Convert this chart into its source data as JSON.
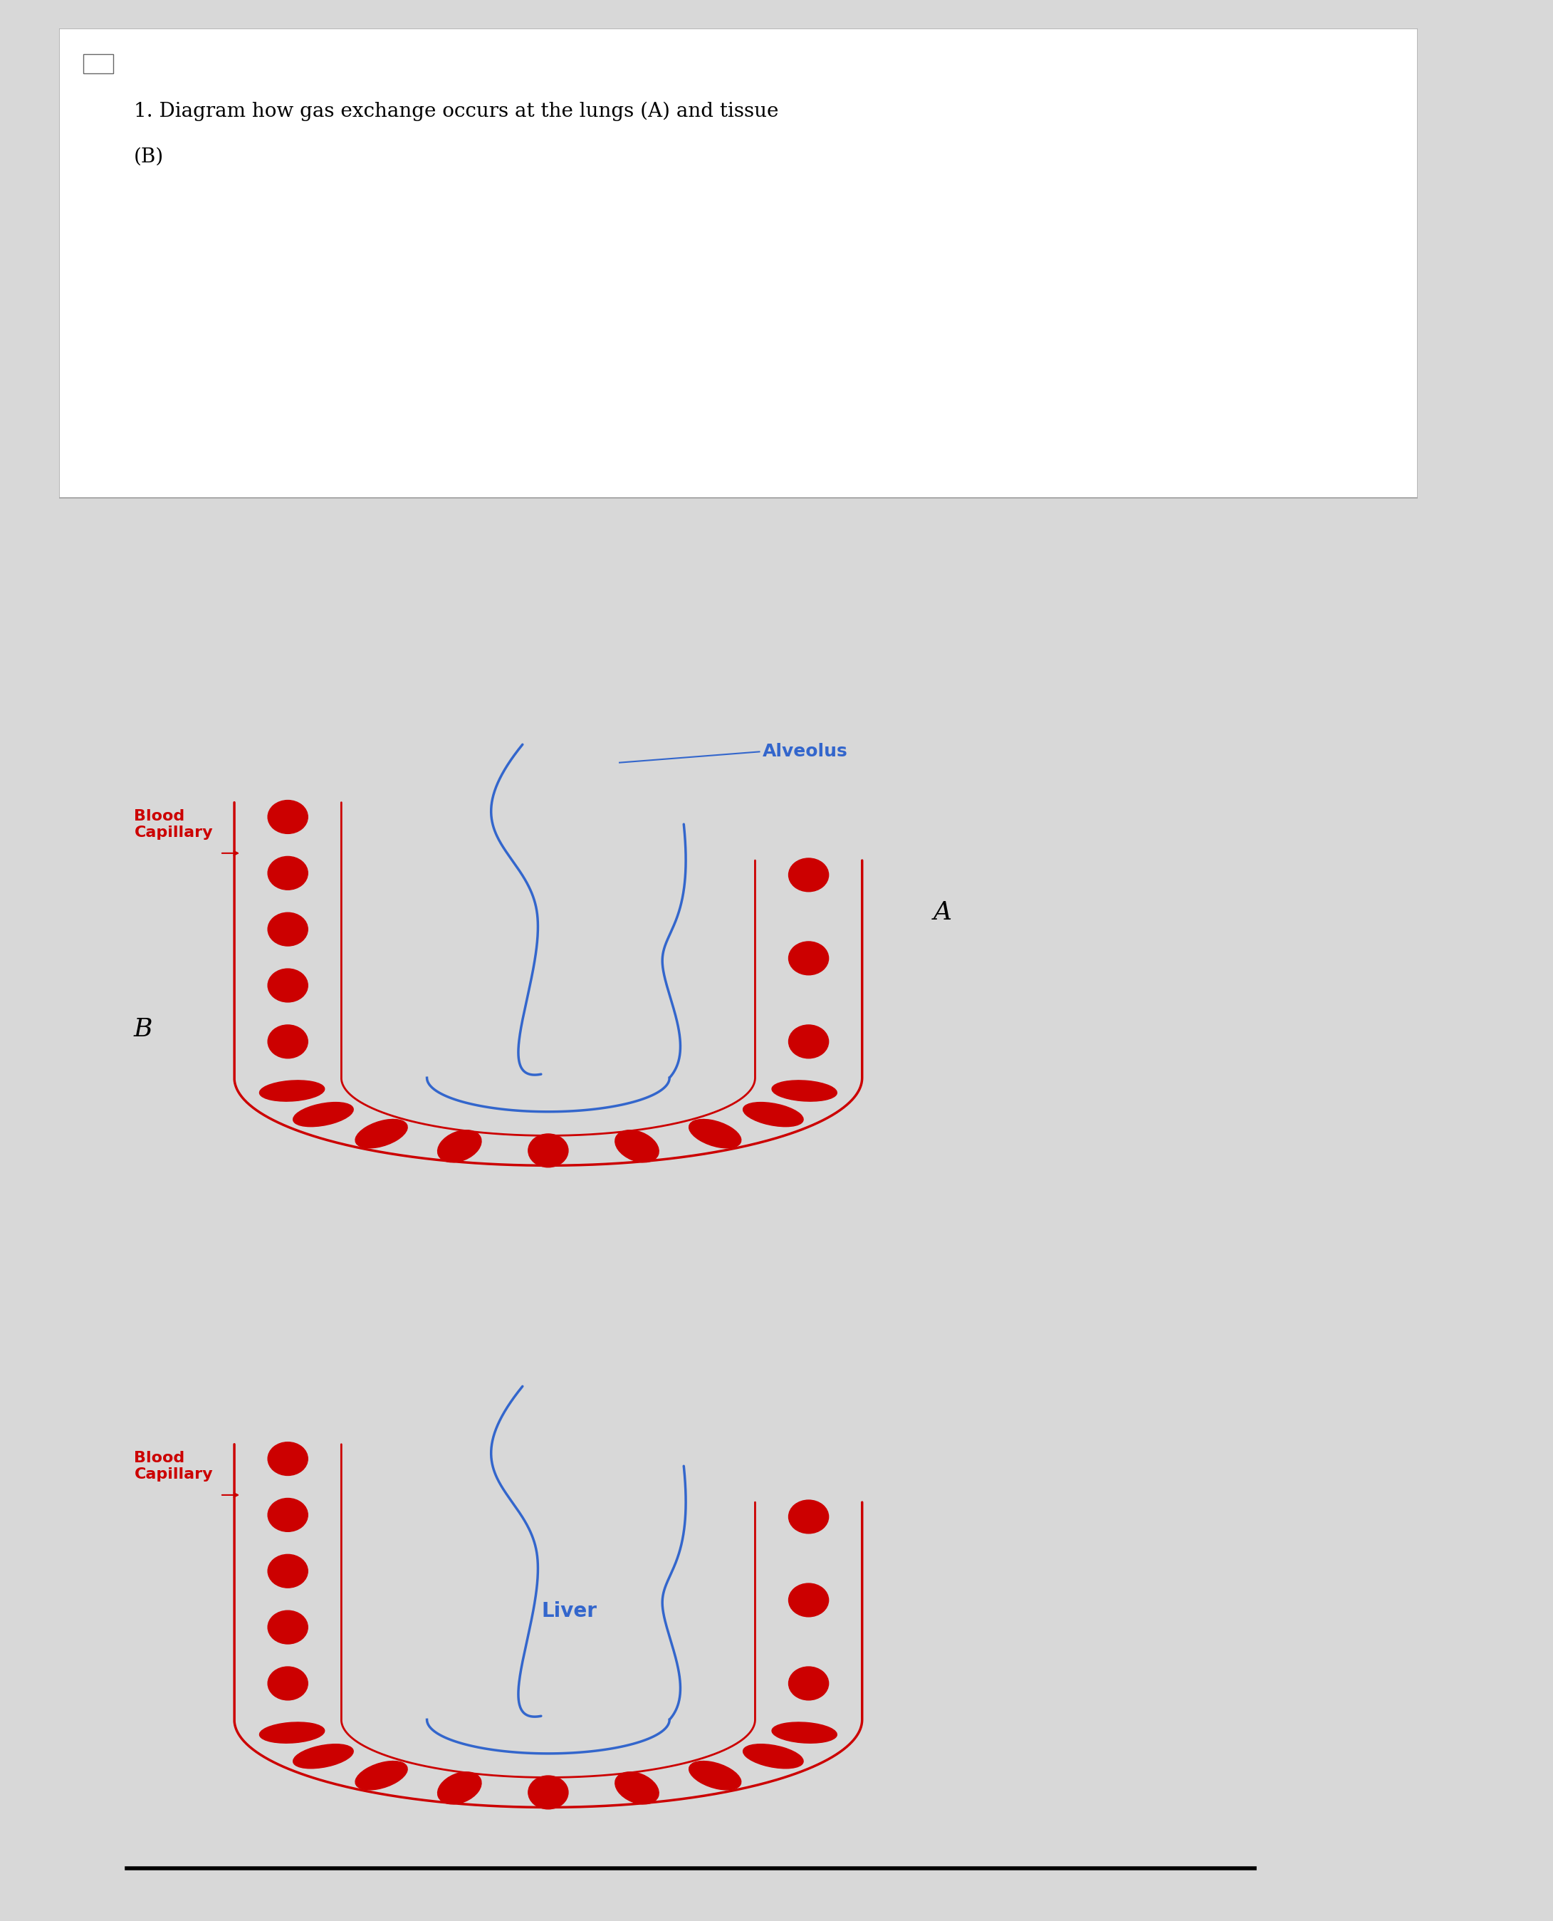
{
  "title_line1": "1. Diagram how gas exchange occurs at the lungs (A) and tissue",
  "title_line2": "(B)",
  "title_color": "#000000",
  "title_fontsize": 20,
  "bg_color": "#ffffff",
  "outer_bg": "#d8d8d8",
  "capillary_color": "#cc0000",
  "alveolus_color": "#3366cc",
  "rbc_color": "#cc0000",
  "label_A": "A",
  "label_B": "B",
  "label_alveolus": "Alveolus",
  "label_blood_cap": "Blood\nCapillary",
  "label_liver": "Liver",
  "label_color_red": "#cc0000",
  "label_color_blue": "#3366cc",
  "label_color_black": "#000000",
  "cap_lw_outer": 2.5,
  "cap_lw_inner": 2.0,
  "alv_lw": 2.5
}
